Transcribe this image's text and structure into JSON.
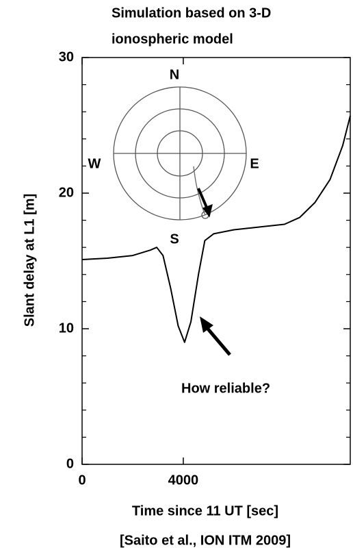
{
  "chart_data": {
    "type": "line",
    "title": [
      "Simulation  based  on 3-D",
      "ionospheric  model"
    ],
    "x_label": "Time  since  11 UT [sec]",
    "y_label": "Slant  delay at L1 [m]",
    "citation": "[Saito et al., ION ITM 2009]",
    "annotation": "How reliable?",
    "inset_labels": [
      "N",
      "W",
      "E",
      "S"
    ],
    "xlim": [
      0,
      10600
    ],
    "xticks": [
      0,
      4000
    ],
    "ylim": [
      0,
      30
    ],
    "yticks": [
      0,
      10,
      20,
      30
    ],
    "yminorticks": [
      2,
      4,
      6,
      8,
      12,
      14,
      16,
      18,
      22,
      24,
      26,
      28
    ],
    "color": "#000000",
    "x": [
      0,
      1000,
      2000,
      2700,
      2950,
      3200,
      3500,
      3800,
      4050,
      4300,
      4600,
      4850,
      5200,
      6000,
      7000,
      8000,
      8600,
      9200,
      9800,
      10300,
      10600
    ],
    "values": [
      15.1,
      15.2,
      15.4,
      15.8,
      16.0,
      15.4,
      13.0,
      10.2,
      9.0,
      10.5,
      14.0,
      16.5,
      17.0,
      17.3,
      17.5,
      17.7,
      18.2,
      19.3,
      21.0,
      23.5,
      25.7
    ]
  }
}
